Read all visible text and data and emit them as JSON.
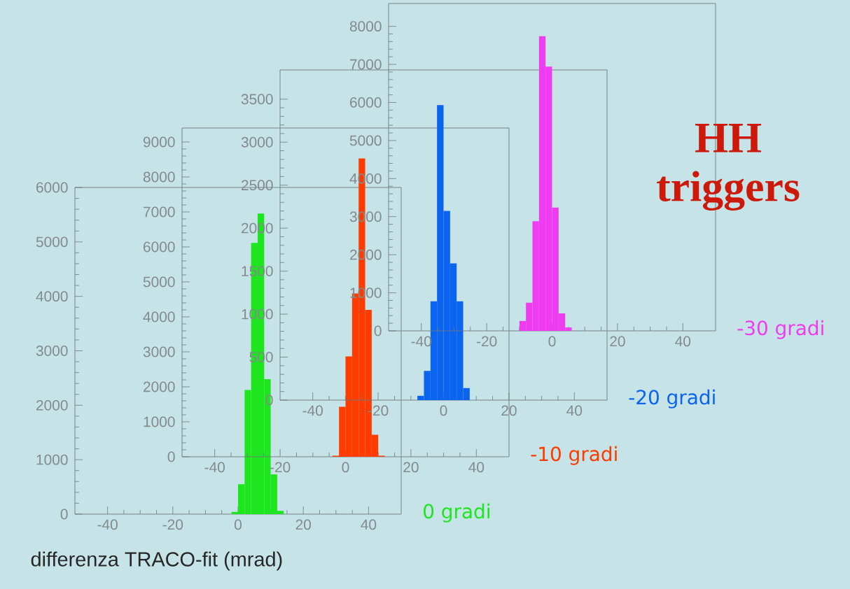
{
  "chart_data": [
    {
      "type": "histogram",
      "color": "#1ee61e",
      "bins": [
        -2,
        0,
        2,
        4,
        6,
        8,
        10,
        12,
        14
      ],
      "values": [
        40,
        550,
        2280,
        4980,
        5520,
        2480,
        730,
        60
      ],
      "xlim": [
        -50,
        50
      ],
      "ylim": [
        0,
        6000
      ],
      "xticks": [
        -40,
        -20,
        0,
        20,
        40
      ],
      "yticks": [
        0,
        1000,
        2000,
        3000,
        4000,
        5000,
        6000
      ],
      "xlabel": "differenza TRACO-fit (mrad)",
      "annotations": [
        "0 gradi"
      ]
    },
    {
      "type": "histogram",
      "color": "#ff3c00",
      "bins": [
        -4,
        -2,
        0,
        2,
        4,
        6,
        8,
        10,
        12
      ],
      "values": [
        30,
        1430,
        2870,
        4670,
        8530,
        4200,
        630,
        30
      ],
      "xlim": [
        -50,
        50
      ],
      "ylim": [
        0,
        9400
      ],
      "xticks": [
        -40,
        -20,
        0,
        20,
        40
      ],
      "yticks": [
        0,
        1000,
        2000,
        3000,
        4000,
        5000,
        6000,
        7000,
        8000,
        9000
      ],
      "annotations": [
        "-10 gradi"
      ]
    },
    {
      "type": "histogram",
      "color": "#0a64f0",
      "bins": [
        -8,
        -6,
        -4,
        -2,
        0,
        2,
        4,
        6,
        8
      ],
      "values": [
        50,
        340,
        1150,
        3430,
        2200,
        1590,
        1150,
        140
      ],
      "xlim": [
        -50,
        50
      ],
      "ylim": [
        0,
        3840
      ],
      "xticks": [
        -40,
        -20,
        0,
        20,
        40
      ],
      "yticks": [
        0,
        500,
        1000,
        1500,
        2000,
        2500,
        3000,
        3500
      ],
      "annotations": [
        "-20 gradi"
      ]
    },
    {
      "type": "histogram",
      "color": "#f03cf0",
      "bins": [
        -10,
        -8,
        -6,
        -4,
        -2,
        0,
        2,
        4,
        6
      ],
      "values": [
        260,
        740,
        2880,
        7740,
        6940,
        3240,
        460,
        90
      ],
      "xlim": [
        -50,
        50
      ],
      "ylim": [
        0,
        8600
      ],
      "xticks": [
        -40,
        -20,
        0,
        20,
        40
      ],
      "yticks": [
        0,
        1000,
        2000,
        3000,
        4000,
        5000,
        6000,
        7000,
        8000
      ],
      "title": "HH triggers",
      "annotations": [
        "-30 gradi"
      ]
    }
  ]
}
